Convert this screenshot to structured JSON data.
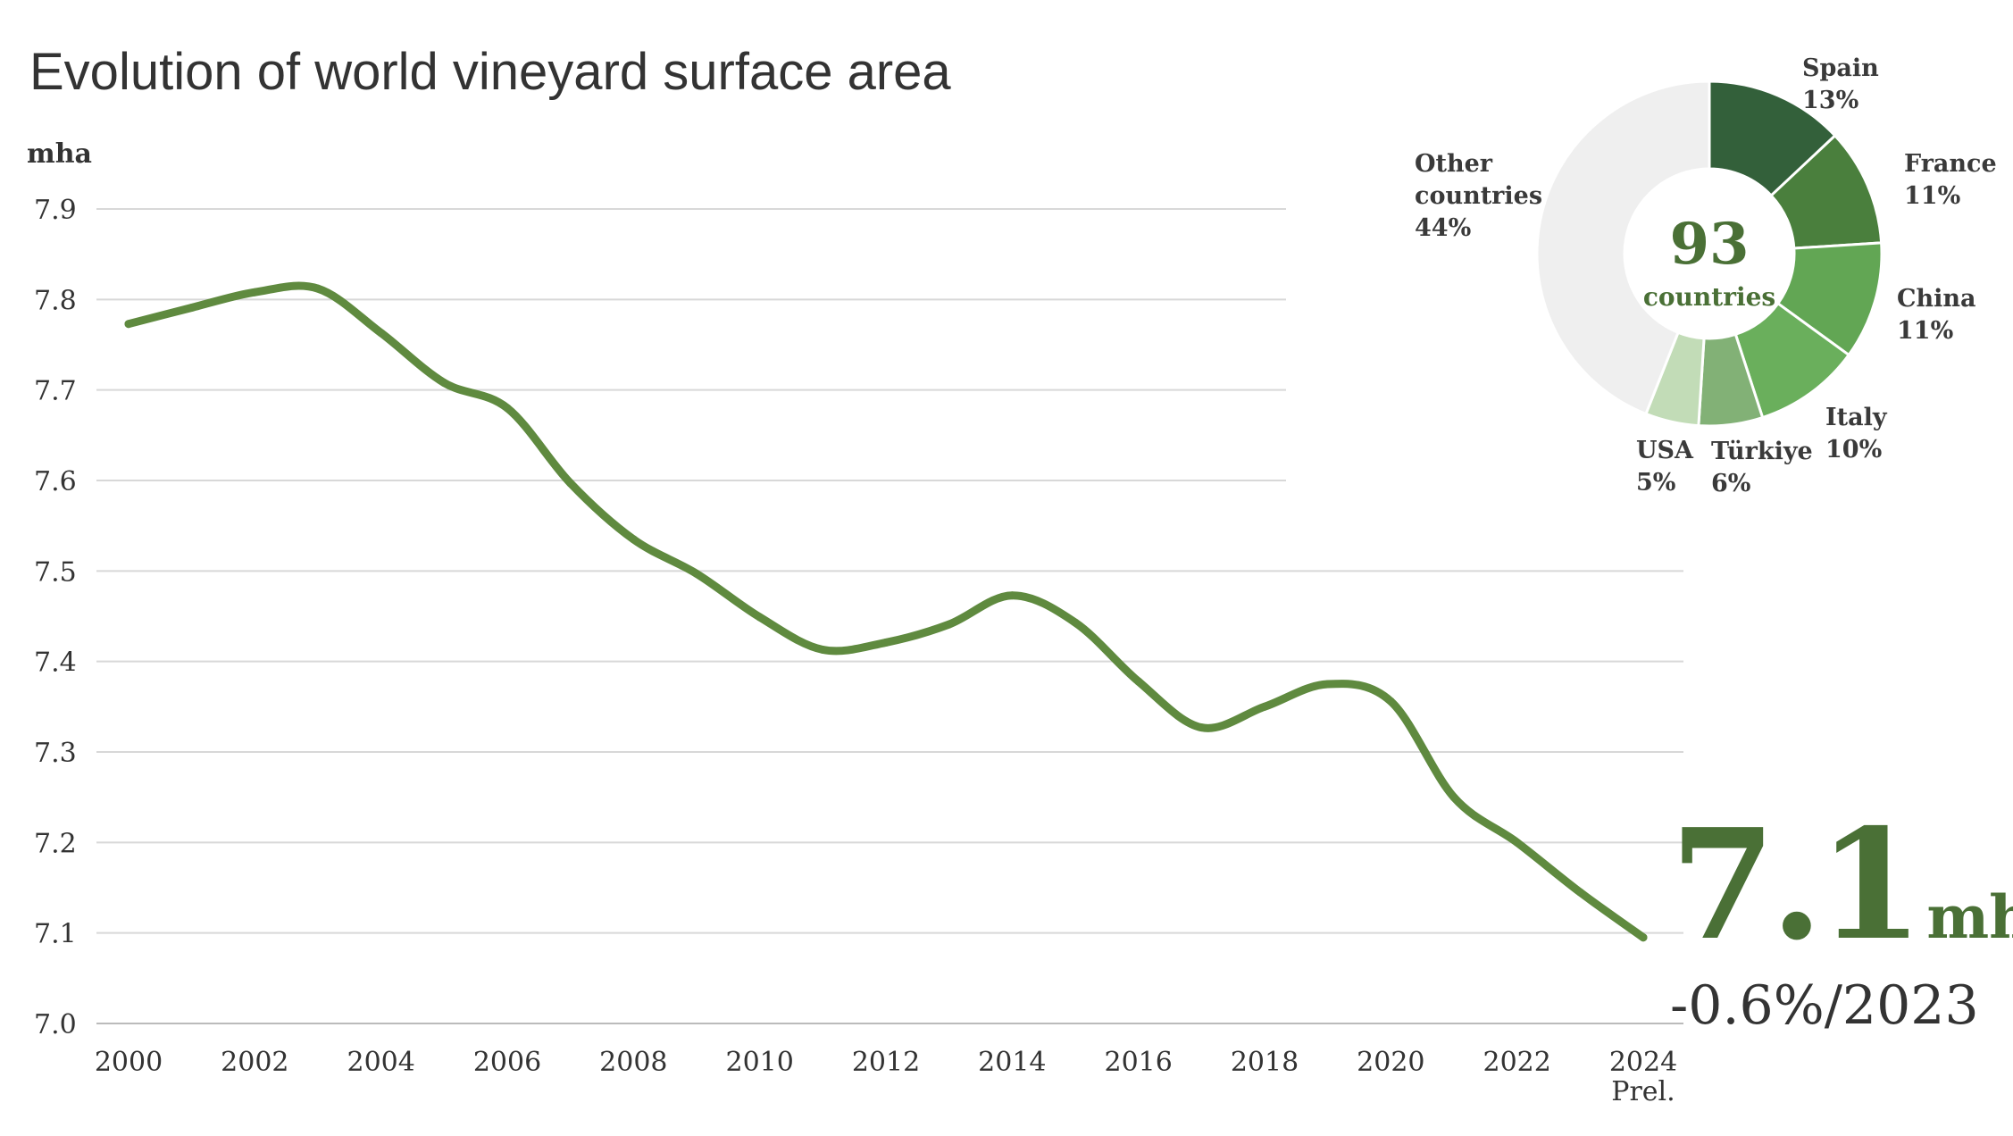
{
  "chart_data": [
    {
      "type": "line",
      "title": "Evolution of world vineyard surface area",
      "ylabel": "mha",
      "xlabel": "",
      "ylim": [
        7.0,
        7.9
      ],
      "yticks": [
        "7.9",
        "7.8",
        "7.7",
        "7.6",
        "7.5",
        "7.4",
        "7.3",
        "7.2",
        "7.1",
        "7.0"
      ],
      "xlim": [
        2000,
        2024
      ],
      "xticks": [
        "2000",
        "2002",
        "2004",
        "2006",
        "2008",
        "2010",
        "2012",
        "2014",
        "2016",
        "2018",
        "2020",
        "2022",
        "2024"
      ],
      "x_last_note": "Prel.",
      "grid": true,
      "color": "#5f8a3f",
      "x": [
        2000,
        2001,
        2002,
        2003,
        2004,
        2005,
        2006,
        2007,
        2008,
        2009,
        2010,
        2011,
        2012,
        2013,
        2014,
        2015,
        2016,
        2017,
        2018,
        2019,
        2020,
        2021,
        2022,
        2023,
        2024
      ],
      "values": [
        7.773,
        7.791,
        7.808,
        7.812,
        7.763,
        7.708,
        7.68,
        7.597,
        7.535,
        7.497,
        7.449,
        7.413,
        7.421,
        7.441,
        7.473,
        7.443,
        7.378,
        7.327,
        7.35,
        7.375,
        7.356,
        7.25,
        7.2,
        7.145,
        7.095
      ],
      "highlight": {
        "value": "7.1",
        "unit": "mha",
        "change": "-0.6%/2023"
      }
    },
    {
      "type": "pie",
      "variant": "donut",
      "center_value": "93",
      "center_label": "countries",
      "slices": [
        {
          "label": "Spain",
          "value": 13,
          "pct": "13%",
          "color": "#33603a"
        },
        {
          "label": "France",
          "value": 11,
          "pct": "11%",
          "color": "#4a7f3d"
        },
        {
          "label": "China",
          "value": 11,
          "pct": "11%",
          "color": "#62a654"
        },
        {
          "label": "Italy",
          "value": 10,
          "pct": "10%",
          "color": "#6aaf5c"
        },
        {
          "label": "Türkiye",
          "value": 6,
          "pct": "6%",
          "color": "#82b176"
        },
        {
          "label": "USA",
          "value": 5,
          "pct": "5%",
          "color": "#c2dcb7"
        },
        {
          "label": "Other countries",
          "label_lines": [
            "Other",
            "countries"
          ],
          "value": 44,
          "pct": "44%",
          "color": "#efefef"
        }
      ]
    }
  ],
  "colors": {
    "line": "#5f8a3f",
    "accent": "#4a7036",
    "grid": "#d8d8d8",
    "text": "#333333",
    "label": "#3a3a3a"
  }
}
